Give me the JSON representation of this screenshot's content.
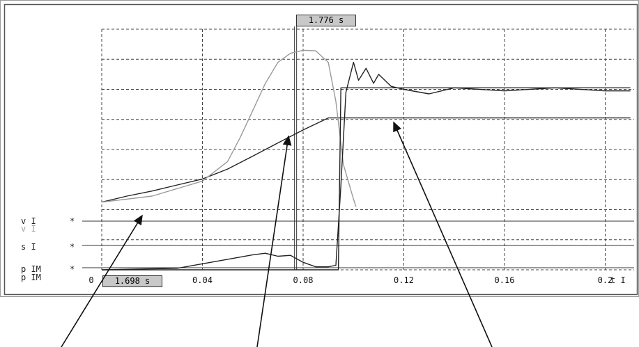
{
  "cursor_top_label": "1.776 s",
  "cursor_bottom_label": "1.698 s",
  "signals": [
    {
      "label": "v I",
      "marker": "*"
    },
    {
      "label": "v I",
      "marker": ""
    },
    {
      "label": "s I",
      "marker": "*"
    },
    {
      "label": "p IM",
      "marker": "*"
    },
    {
      "label": "p IM",
      "marker": ""
    }
  ],
  "x_axis": {
    "tick_labels": [
      "0",
      "0.04",
      "0.08",
      "0.12",
      "0.16",
      "0.2"
    ],
    "unit_label": "t I"
  },
  "colors": {
    "trace_dark": "#222222",
    "trace_light": "#9a9a9a",
    "grid": "#444444",
    "frame": "#555555",
    "cursor_box": "#c8c8c8"
  },
  "chart_data": {
    "type": "line",
    "title": "",
    "xlabel": "t I",
    "ylabel": "",
    "xlim": [
      0,
      0.21
    ],
    "ylim": [
      0,
      8
    ],
    "grid": true,
    "cursors": [
      {
        "label": "1.776 s",
        "x": 0.077
      },
      {
        "label": "1.698 s",
        "x": 0.0
      }
    ],
    "series": [
      {
        "name": "v I",
        "style": "dark",
        "x": [
          0,
          0.01,
          0.02,
          0.03,
          0.04,
          0.05,
          0.06,
          0.07,
          0.08,
          0.09,
          0.096,
          0.1,
          0.12,
          0.16,
          0.2,
          0.21
        ],
        "y": [
          2.25,
          2.45,
          2.62,
          2.82,
          3.02,
          3.35,
          3.78,
          4.22,
          4.65,
          5.05,
          5.05,
          5.05,
          5.05,
          5.05,
          5.05,
          5.05
        ]
      },
      {
        "name": "v I",
        "style": "light",
        "x": [
          0,
          0.02,
          0.04,
          0.05,
          0.055,
          0.06,
          0.065,
          0.07,
          0.075,
          0.08,
          0.085,
          0.09,
          0.093,
          0.096,
          0.1,
          0.101
        ],
        "y": [
          2.25,
          2.45,
          2.95,
          3.6,
          4.4,
          5.3,
          6.2,
          6.9,
          7.2,
          7.3,
          7.28,
          6.9,
          5.6,
          3.5,
          2.35,
          2.1
        ]
      },
      {
        "name": "s I",
        "style": "dark",
        "x": [
          0,
          0.094,
          0.095,
          0.21
        ],
        "y": [
          0,
          0,
          6.05,
          6.05
        ]
      },
      {
        "name": "p IM",
        "style": "dark",
        "x": [
          0,
          0.03,
          0.05,
          0.06,
          0.065,
          0.07,
          0.075,
          0.08,
          0.085,
          0.09,
          0.093,
          0.095,
          0.097,
          0.1,
          0.102,
          0.105,
          0.108,
          0.11,
          0.115,
          0.12,
          0.13,
          0.14,
          0.16,
          0.18,
          0.2,
          0.21
        ],
        "y": [
          0,
          0.05,
          0.35,
          0.5,
          0.55,
          0.45,
          0.48,
          0.25,
          0.1,
          0.1,
          0.15,
          2.8,
          5.9,
          6.9,
          6.3,
          6.7,
          6.2,
          6.5,
          6.1,
          6.0,
          5.85,
          6.05,
          5.95,
          6.05,
          5.95,
          5.95
        ]
      }
    ]
  }
}
